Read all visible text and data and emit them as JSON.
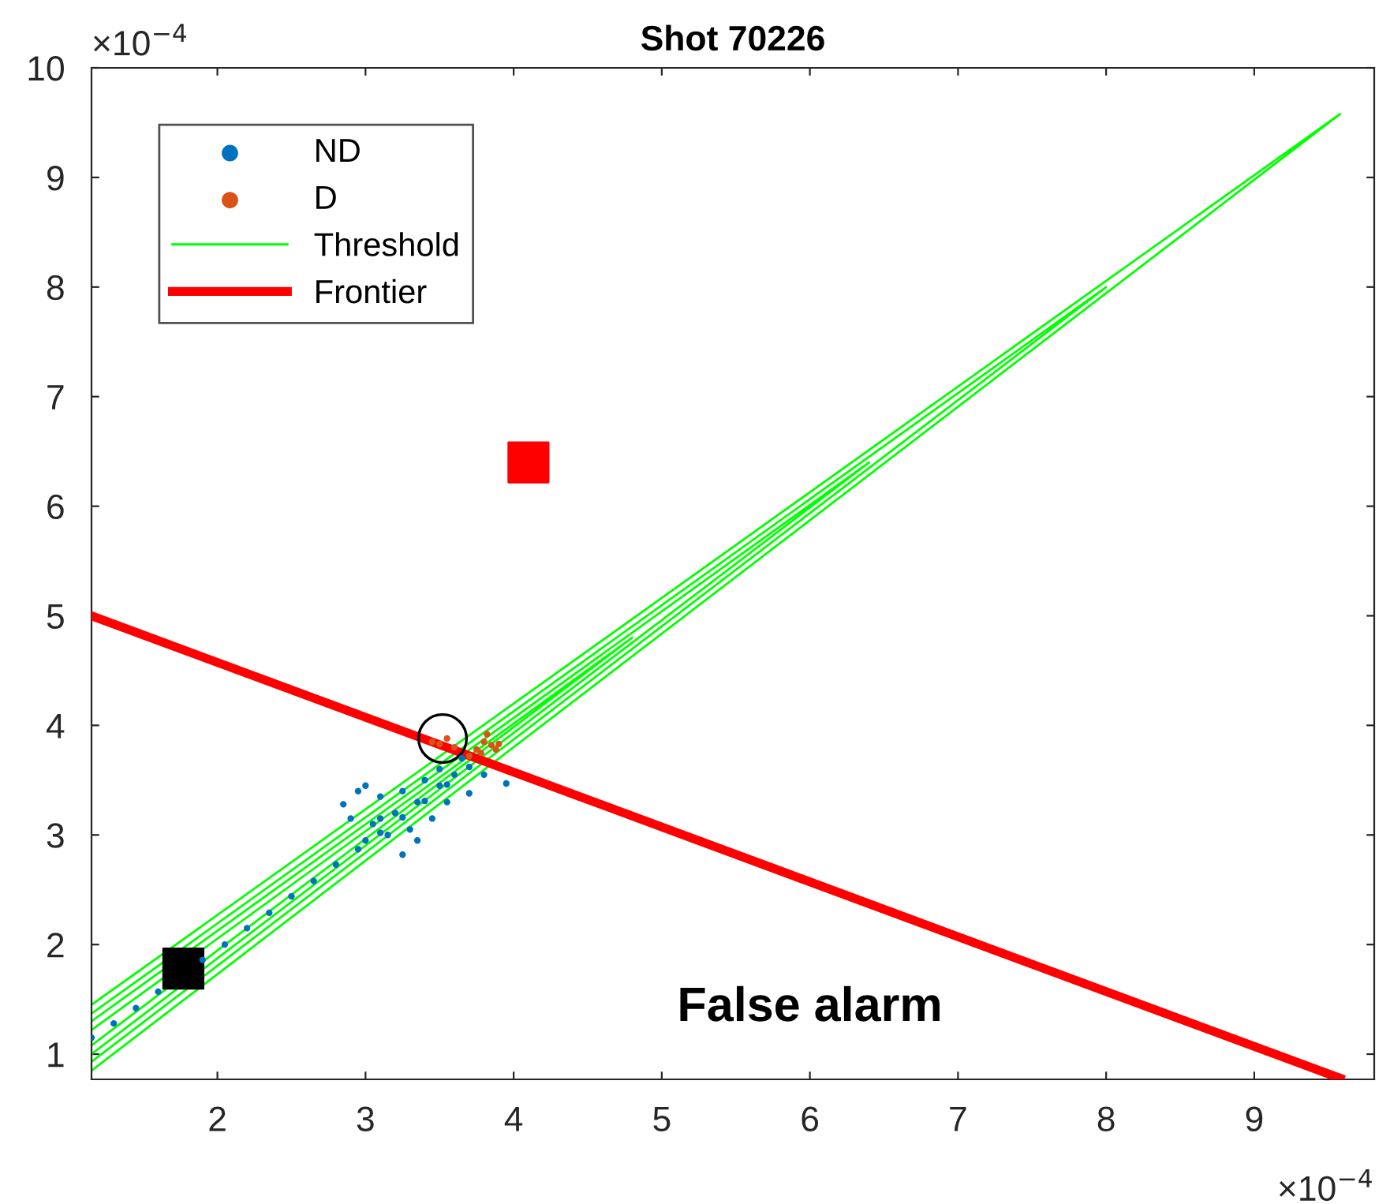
{
  "chart_data": {
    "type": "scatter",
    "title": "Shot 70226",
    "xlim": [
      1.15,
      9.81
    ],
    "ylim": [
      0.77,
      10
    ],
    "xticks": [
      2,
      3,
      4,
      5,
      6,
      7,
      8,
      9
    ],
    "yticks": [
      1,
      2,
      3,
      4,
      5,
      6,
      7,
      8,
      9,
      10
    ],
    "grid": false,
    "legend": "top left",
    "annotations": [
      "×10$^{−4}$",
      "×10$^{−4}$",
      "False alarm"
    ],
    "series": [
      {
        "name": "ND",
        "marker": "circle",
        "color": "#0072bd",
        "x": [
          1.15,
          1.3,
          1.45,
          1.6,
          1.9,
          2.05,
          2.2,
          2.35,
          2.5,
          2.65,
          2.8,
          2.95,
          3.1,
          3.25,
          3.4,
          3.55,
          3.7,
          2.85,
          2.95,
          3.0,
          3.05,
          3.1,
          3.15,
          3.2,
          3.25,
          3.3,
          3.35,
          3.4,
          3.45,
          3.5,
          3.55,
          3.6,
          3.7,
          3.8,
          3.95,
          2.9,
          3.0,
          3.1,
          3.25,
          3.35,
          3.5,
          3.65
        ],
        "values": [
          1.15,
          1.28,
          1.42,
          1.57,
          1.86,
          2.0,
          2.15,
          2.29,
          2.44,
          2.58,
          2.73,
          2.87,
          3.02,
          3.16,
          3.31,
          3.46,
          3.62,
          3.28,
          3.4,
          3.45,
          3.1,
          3.35,
          3.0,
          3.2,
          2.82,
          3.05,
          3.3,
          3.5,
          3.15,
          3.45,
          3.3,
          3.55,
          3.38,
          3.55,
          3.47,
          3.15,
          2.95,
          3.15,
          3.4,
          2.95,
          3.6,
          3.7
        ]
      },
      {
        "name": "D",
        "marker": "circle",
        "color": "#d95319",
        "x": [
          3.45,
          3.5,
          3.55,
          3.6,
          3.75,
          3.8,
          3.85,
          3.82,
          3.78,
          3.88,
          3.7,
          3.9
        ],
        "values": [
          3.85,
          3.83,
          3.88,
          3.8,
          3.78,
          3.85,
          3.82,
          3.92,
          3.75,
          3.78,
          3.72,
          3.83
        ]
      },
      {
        "name": "Threshold",
        "type": "line",
        "color": "#00ff00",
        "x": [
          1.15,
          9.58,
          1.15
        ],
        "values": [
          0.85,
          9.58,
          1.45
        ]
      },
      {
        "type": "line",
        "color": "#00ff00",
        "x": [
          1.15,
          8.0,
          1.15
        ],
        "values": [
          0.93,
          8.0,
          1.37
        ]
      },
      {
        "type": "line",
        "color": "#00ff00",
        "x": [
          1.15,
          6.4,
          1.15
        ],
        "values": [
          1.0,
          6.4,
          1.3
        ]
      },
      {
        "type": "line",
        "color": "#00ff00",
        "x": [
          1.15,
          4.8,
          1.15
        ],
        "values": [
          1.08,
          4.8,
          1.22
        ]
      },
      {
        "name": "Frontier",
        "type": "line",
        "color": "#ff0000",
        "x": [
          1.15,
          9.58
        ],
        "values": [
          5.0,
          0.78
        ]
      },
      {
        "type": "scatter",
        "marker": "square",
        "color": "#000000",
        "x": [
          1.77
        ],
        "values": [
          1.78
        ]
      },
      {
        "type": "scatter",
        "marker": "square",
        "color": "#ff0000",
        "x": [
          4.1
        ],
        "values": [
          6.4
        ]
      },
      {
        "type": "scatter",
        "marker": "circle",
        "color": "#000000",
        "x": [
          3.52
        ],
        "values": [
          3.88
        ]
      }
    ]
  }
}
